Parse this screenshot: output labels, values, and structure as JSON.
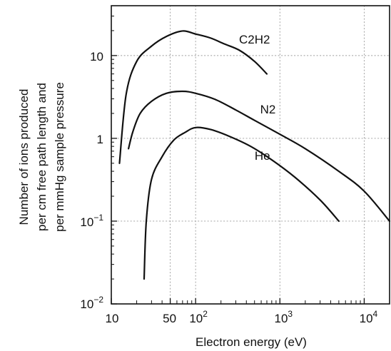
{
  "chart_data": {
    "type": "line",
    "title": "",
    "xlabel": "Electron energy (eV)",
    "ylabel": [
      "Number of ions produced",
      "per cm free path length and",
      "per mmHg sample pressure"
    ],
    "x_scale": "log",
    "y_scale": "log",
    "xlim": [
      10,
      20000
    ],
    "ylim": [
      0.01,
      40
    ],
    "grid": true,
    "x_ticks": [
      {
        "value": 10,
        "label": "10"
      },
      {
        "value": 50,
        "label": "50"
      },
      {
        "value": 100,
        "label": "10",
        "exp": "2"
      },
      {
        "value": 1000,
        "label": "10",
        "exp": "3"
      },
      {
        "value": 10000,
        "label": "10",
        "exp": "4"
      }
    ],
    "y_ticks": [
      {
        "value": 0.01,
        "label": "10",
        "exp": "−2"
      },
      {
        "value": 0.1,
        "label": "10",
        "exp": "−1"
      },
      {
        "value": 1,
        "label": "1"
      },
      {
        "value": 10,
        "label": "10"
      }
    ],
    "series": [
      {
        "name": "C2H2",
        "x": [
          12.5,
          15,
          20,
          30,
          45,
          70,
          100,
          150,
          220,
          330,
          500,
          700
        ],
        "y": [
          0.5,
          3.4,
          8.5,
          13,
          17,
          19.8,
          18.2,
          16.3,
          13.8,
          11.6,
          8.5,
          6.0
        ]
      },
      {
        "name": "N2",
        "x": [
          16,
          18,
          22,
          30,
          45,
          70,
          100,
          170,
          300,
          500,
          1000,
          2000,
          5000,
          10000,
          20000
        ],
        "y": [
          0.75,
          1.2,
          2.0,
          2.8,
          3.5,
          3.7,
          3.5,
          2.96,
          2.2,
          1.65,
          1.12,
          0.75,
          0.4,
          0.23,
          0.1
        ]
      },
      {
        "name": "He",
        "x": [
          24.5,
          26,
          30,
          40,
          55,
          75,
          100,
          150,
          250,
          450,
          800,
          1500,
          3000,
          5000
        ],
        "y": [
          0.02,
          0.1,
          0.32,
          0.6,
          0.95,
          1.18,
          1.35,
          1.28,
          1.06,
          0.8,
          0.55,
          0.34,
          0.18,
          0.1
        ]
      }
    ],
    "annotations": [
      {
        "text": "C2H2",
        "x": 500,
        "y": 14
      },
      {
        "text": "N2",
        "x": 720,
        "y": 2.0
      },
      {
        "text": "He",
        "x": 620,
        "y": 0.55
      }
    ]
  }
}
